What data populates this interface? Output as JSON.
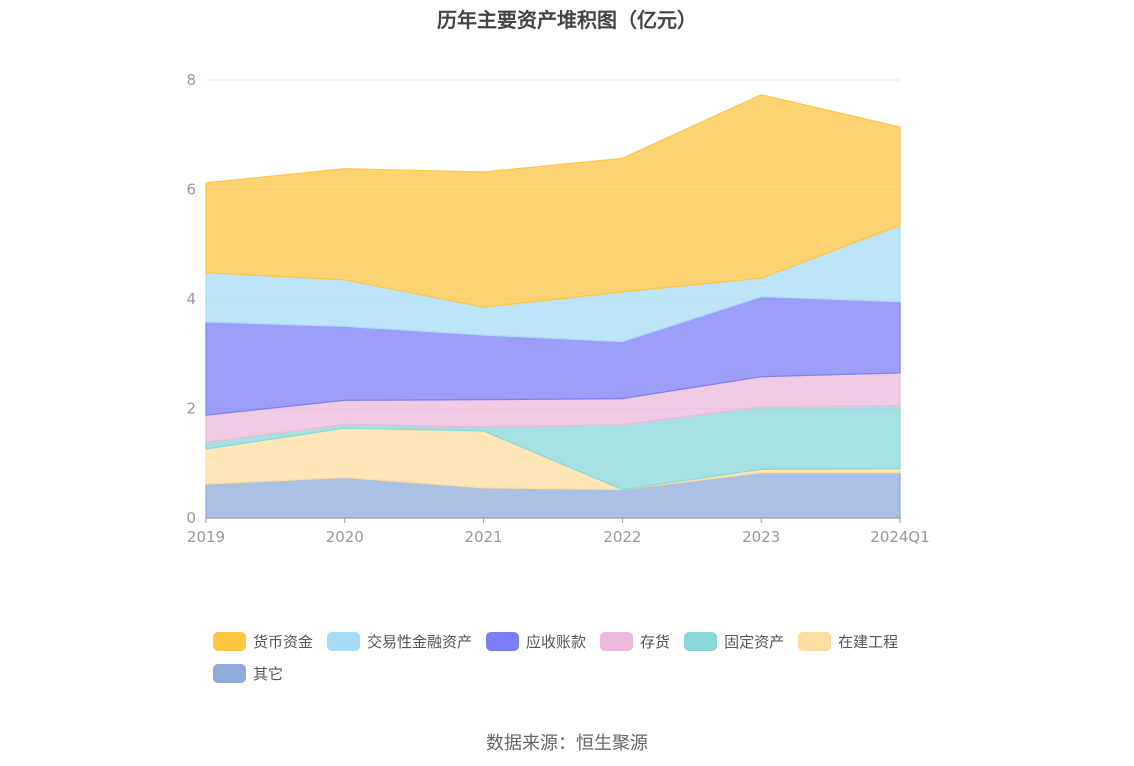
{
  "chart_data": {
    "type": "area",
    "stacked": true,
    "title": "历年主要资产堆积图（亿元）",
    "categories": [
      "2019",
      "2020",
      "2021",
      "2022",
      "2023",
      "2024Q1"
    ],
    "y_ticks": [
      "0",
      "2",
      "4",
      "6",
      "8"
    ],
    "ylim": [
      0,
      8
    ],
    "grid": true,
    "legend_position": "bottom",
    "series": [
      {
        "name": "其它",
        "color": "#8fabd9",
        "values": [
          0.62,
          0.74,
          0.55,
          0.52,
          0.83,
          0.83
        ]
      },
      {
        "name": "在建工程",
        "color": "#fddda0",
        "values": [
          0.64,
          0.9,
          1.04,
          0.0,
          0.06,
          0.07
        ]
      },
      {
        "name": "固定资产",
        "color": "#8ad8d8",
        "values": [
          0.12,
          0.07,
          0.07,
          1.18,
          1.14,
          1.15
        ]
      },
      {
        "name": "存货",
        "color": "#ebbada",
        "values": [
          0.5,
          0.44,
          0.5,
          0.48,
          0.55,
          0.6
        ]
      },
      {
        "name": "应收账款",
        "color": "#7b7ef5",
        "values": [
          1.7,
          1.35,
          1.18,
          1.04,
          1.46,
          1.3
        ]
      },
      {
        "name": "交易性金融资产",
        "color": "#a6dcf8",
        "values": [
          0.9,
          0.85,
          0.51,
          0.91,
          0.34,
          1.4
        ]
      },
      {
        "name": "货币资金",
        "color": "#fdc643",
        "values": [
          1.64,
          2.03,
          2.47,
          2.44,
          3.35,
          1.79
        ]
      }
    ],
    "legend_order": [
      "货币资金",
      "交易性金融资产",
      "应收账款",
      "存货",
      "固定资产",
      "在建工程",
      "其它"
    ]
  },
  "source_note": "数据来源：恒生聚源"
}
